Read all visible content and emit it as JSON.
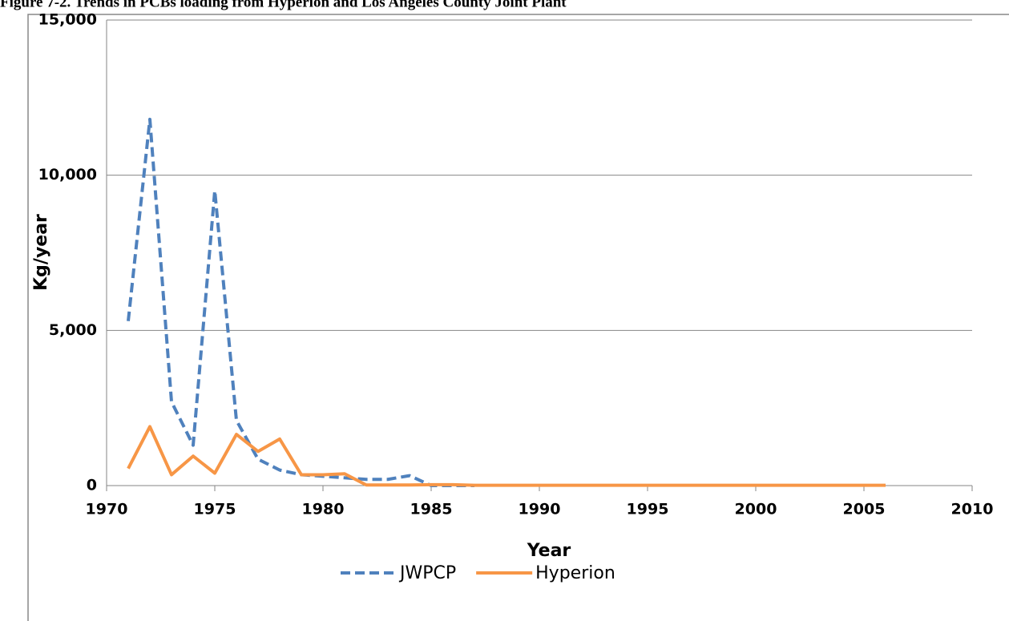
{
  "chart_data": {
    "type": "line",
    "title": "Figure 7-2.  Trends in PCBs loading from Hyperion and Los Angeles County Joint Plant",
    "xlabel": "Year",
    "ylabel": "Kg/year",
    "x": [
      1971,
      1972,
      1973,
      1974,
      1975,
      1976,
      1977,
      1978,
      1979,
      1980,
      1981,
      1982,
      1983,
      1984,
      1985,
      1986,
      1987,
      1988,
      1989,
      1990,
      1991,
      1992,
      1993,
      1994,
      1995,
      1996,
      1997,
      1998,
      1999,
      2000,
      2001,
      2002,
      2003,
      2004,
      2005,
      2006
    ],
    "series": [
      {
        "name": "JWPCP",
        "color": "#4f81bd",
        "dash": true,
        "values": [
          5300,
          11800,
          2700,
          1300,
          9500,
          2100,
          850,
          500,
          350,
          300,
          250,
          200,
          200,
          320,
          0,
          0,
          0,
          null,
          null,
          null,
          null,
          null,
          null,
          null,
          null,
          null,
          null,
          null,
          null,
          null,
          null,
          null,
          null,
          null,
          null,
          null
        ]
      },
      {
        "name": "Hyperion",
        "color": "#f79646",
        "dash": false,
        "values": [
          550,
          1900,
          350,
          950,
          400,
          1650,
          1100,
          1500,
          350,
          350,
          380,
          20,
          20,
          20,
          30,
          30,
          10,
          10,
          10,
          10,
          10,
          10,
          10,
          10,
          10,
          10,
          10,
          10,
          10,
          10,
          10,
          10,
          10,
          10,
          10,
          10
        ]
      }
    ],
    "xlim": [
      1970,
      2010
    ],
    "xticks": [
      1970,
      1975,
      1980,
      1985,
      1990,
      1995,
      2000,
      2005,
      2010
    ],
    "ylim": [
      0,
      15000
    ],
    "yticks": [
      0,
      {
        "value": 5000,
        "label": "5,000"
      },
      {
        "value": 10000,
        "label": "10,000"
      },
      {
        "value": 15000,
        "label": "15,000"
      }
    ],
    "grid": true,
    "legend": "bottom"
  }
}
